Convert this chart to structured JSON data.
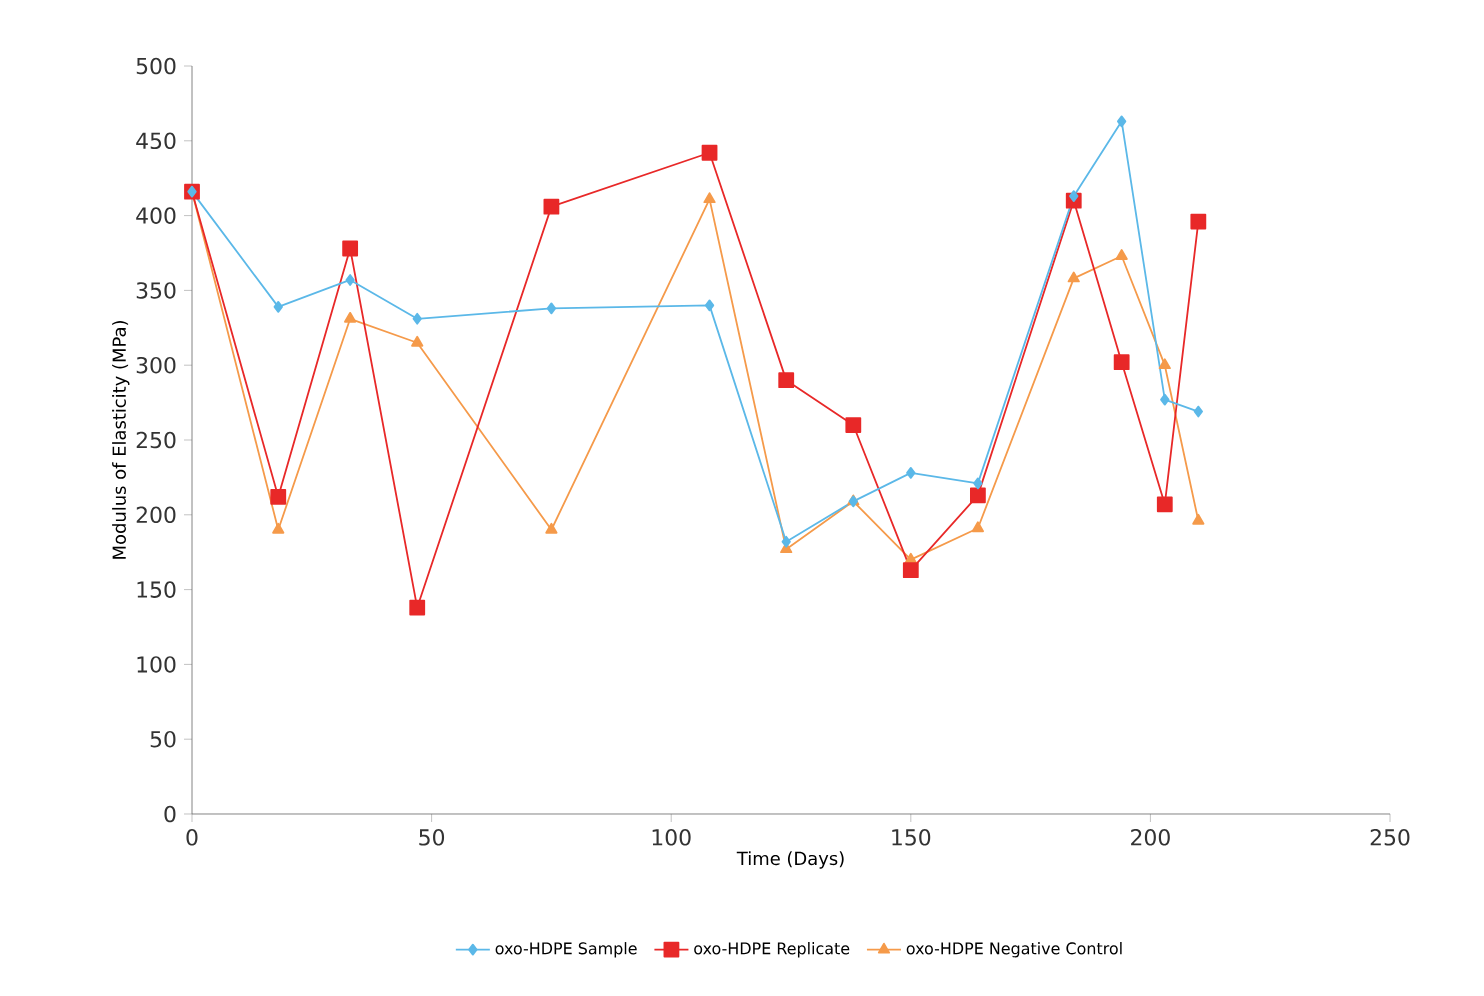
{
  "chart_data": {
    "type": "line",
    "xlabel": "Time (Days)",
    "ylabel": "Modulus of Elasticity (MPa)",
    "x": [
      0,
      18,
      33,
      47,
      75,
      108,
      124,
      138,
      150,
      164,
      184,
      194,
      203,
      210
    ],
    "series": [
      {
        "name": "oxo-HDPE Sample",
        "color": "#5bb8e8",
        "marker": "diamond",
        "values": [
          416,
          339,
          357,
          331,
          338,
          340,
          182,
          209,
          228,
          221,
          413,
          463,
          277,
          269
        ]
      },
      {
        "name": "oxo-HDPE Replicate",
        "color": "#e82828",
        "marker": "square",
        "values": [
          416,
          212,
          378,
          138,
          406,
          442,
          290,
          260,
          163,
          213,
          410,
          302,
          207,
          396
        ]
      },
      {
        "name": "oxo-HDPE Negative Control",
        "color": "#f59a4a",
        "marker": "triangle",
        "values": [
          416,
          190,
          331,
          315,
          190,
          411,
          177,
          209,
          170,
          191,
          358,
          373,
          300,
          196
        ]
      }
    ],
    "xlim": [
      0,
      250
    ],
    "xticks": [
      0,
      50,
      100,
      150,
      200,
      250
    ],
    "ylim": [
      0,
      500
    ],
    "yticks": [
      0,
      50,
      100,
      150,
      200,
      250,
      300,
      350,
      400,
      450,
      500
    ],
    "grid": false,
    "legend": "bottom",
    "line_style": "solid"
  }
}
